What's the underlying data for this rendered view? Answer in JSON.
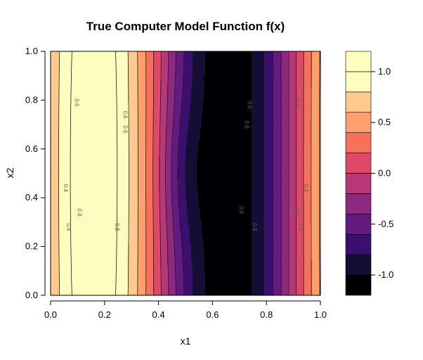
{
  "chart_data": {
    "type": "heatmap",
    "subtype": "filled-contour",
    "title": "True Computer Model Function f(x)",
    "xlabel": "x1",
    "ylabel": "x2",
    "xlim": [
      0,
      1
    ],
    "ylim": [
      0,
      1
    ],
    "x_ticks": [
      "0.0",
      "0.2",
      "0.4",
      "0.6",
      "0.8",
      "1.0"
    ],
    "y_ticks": [
      "0.0",
      "0.2",
      "0.4",
      "0.6",
      "0.8",
      "1.0"
    ],
    "contour_labels": [
      "0.6",
      "0.6",
      "0.4",
      "0.8",
      "0.6",
      "0.6",
      "0.8",
      "0.4",
      "0.6",
      "0.6",
      "0.4",
      "0.8",
      "0.4",
      "0.4",
      "0.8"
    ],
    "colorbar": {
      "levels": [
        -1.2,
        -1.0,
        -0.8,
        -0.6,
        -0.4,
        -0.2,
        0.0,
        0.2,
        0.4,
        0.6,
        0.8,
        1.0,
        1.2
      ],
      "tick_values": [
        1.0,
        0.5,
        0.0,
        -0.5,
        -1.0
      ],
      "tick_labels": [
        "1.0",
        "0.5",
        "0.0",
        "-0.5",
        "-1.0"
      ],
      "colors": [
        "#000004",
        "#140e36",
        "#3b0f70",
        "#641a80",
        "#8c2981",
        "#b73779",
        "#de4968",
        "#f7705c",
        "#fe9f6d",
        "#fec98d",
        "#fcfdbf",
        "#fcfdbf"
      ]
    },
    "grid": false
  }
}
